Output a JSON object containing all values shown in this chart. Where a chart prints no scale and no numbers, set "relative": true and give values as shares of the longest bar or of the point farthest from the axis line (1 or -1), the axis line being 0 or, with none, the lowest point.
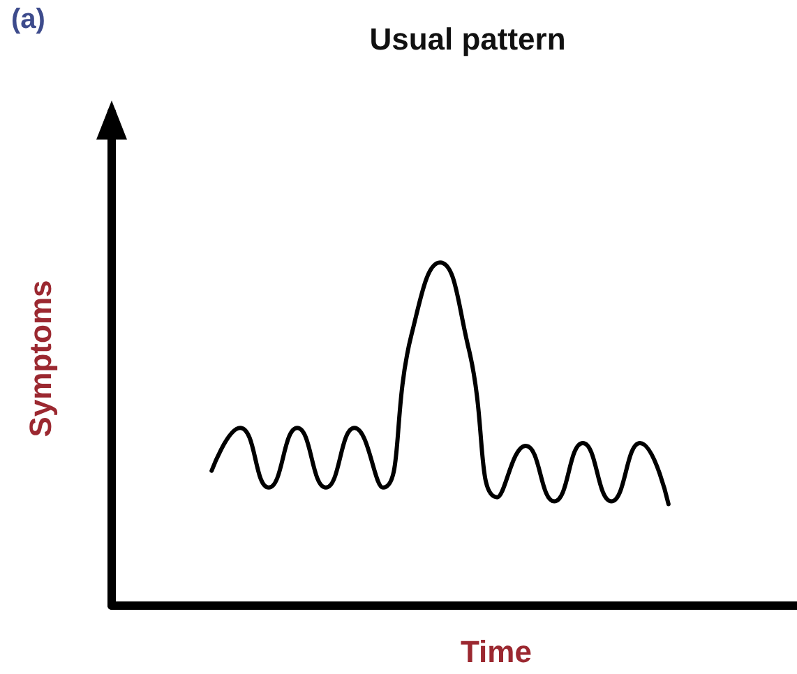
{
  "chart_data": {
    "type": "line",
    "title": "Usual pattern",
    "xlabel": "Time",
    "ylabel": "Symptoms",
    "annotations": [
      "(a)"
    ],
    "relative": true,
    "marker": "none",
    "line_style": "solid",
    "grid": false,
    "categories": [
      null,
      null,
      null,
      null,
      null,
      null,
      null,
      null,
      null,
      null,
      null,
      null,
      null,
      null,
      null,
      null,
      null,
      null,
      null,
      null,
      null,
      null,
      null,
      null
    ],
    "series": [
      {
        "color": "#000000",
        "values": [
          null,
          null,
          null,
          0.393,
          0.518,
          0.344,
          0.518,
          0.344,
          0.518,
          0.344,
          0.79,
          1,
          0.75,
          0.316,
          0.466,
          0.304,
          0.474,
          0.304,
          0.474,
          0.296,
          null,
          null,
          null,
          null
        ]
      }
    ]
  }
}
